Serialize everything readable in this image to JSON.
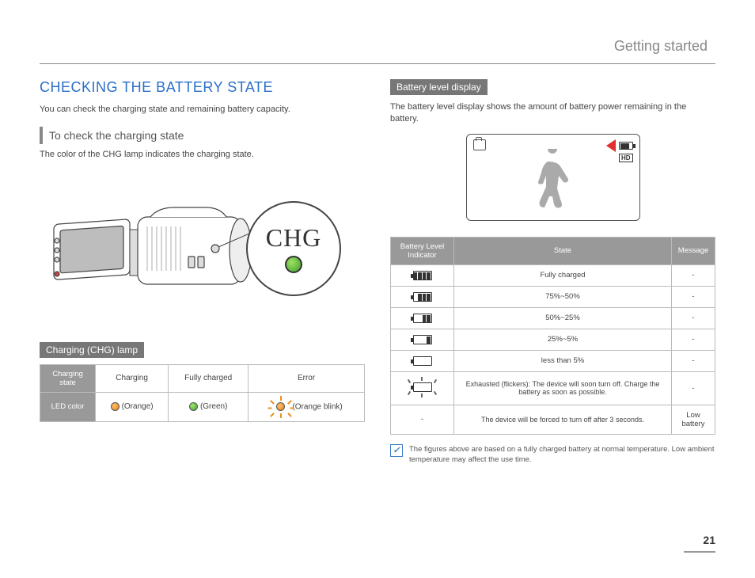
{
  "breadcrumb": "Getting started",
  "page_number": "21",
  "left": {
    "title": "CHECKING THE BATTERY STATE",
    "intro": "You can check the charging state and remaining battery capacity.",
    "sub1": "To check the charging state",
    "sub1_desc": "The color of the CHG lamp indicates the charging state.",
    "chg_label": "CHG",
    "sub2": "Charging (CHG) lamp",
    "chg_table": {
      "row1_label": "Charging state",
      "row2_label": "LED color",
      "cols": [
        "Charging",
        "Fully charged",
        "Error"
      ],
      "leds": [
        "(Orange)",
        "(Green)",
        "(Orange blink)"
      ]
    }
  },
  "right": {
    "sub1": "Battery level display",
    "sub1_desc": "The battery level display shows the amount of battery power remaining in the battery.",
    "table": {
      "headers": [
        "Battery Level Indicator",
        "State",
        "Message"
      ],
      "rows": [
        {
          "fill": 4,
          "state": "Fully charged",
          "msg": "-"
        },
        {
          "fill": 3,
          "state": "75%~50%",
          "msg": "-"
        },
        {
          "fill": 2,
          "state": "50%~25%",
          "msg": "-"
        },
        {
          "fill": 1,
          "state": "25%~5%",
          "msg": "-"
        },
        {
          "fill": 0,
          "state": "less than 5%",
          "msg": "-"
        },
        {
          "fill": -1,
          "state": "Exhausted (flickers): The device will soon turn off. Charge the battery as soon as possible.",
          "msg": "-"
        },
        {
          "fill": -2,
          "state": "The device will be forced to turn off after 3 seconds.",
          "msg": "Low battery"
        }
      ]
    },
    "note": "The figures above are based on a fully charged battery at normal temperature. Low ambient temperature may affect the use time."
  },
  "colors": {
    "blue_heading": "#2a6fc9",
    "grey_header": "#999999",
    "orange": "#e88010",
    "green": "#3ea030",
    "red_arrow": "#e03030"
  }
}
